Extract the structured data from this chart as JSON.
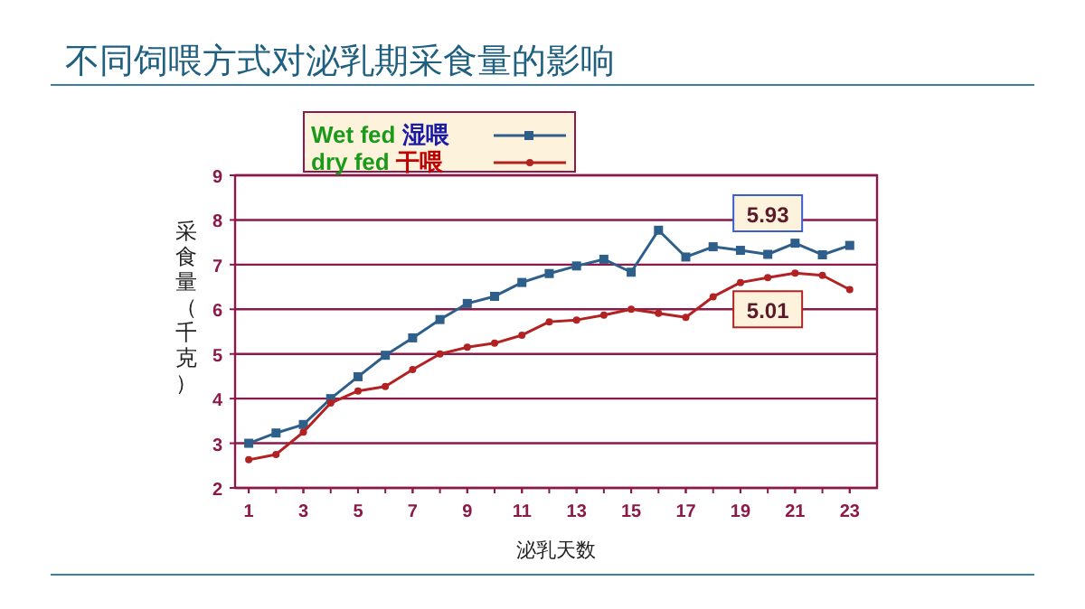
{
  "chart_data": {
    "type": "line",
    "title": "不同饲喂方式对泌乳期采食量的影响",
    "xlabel": "泌乳天数",
    "ylabel": "采食量（千克）",
    "x": [
      1,
      2,
      3,
      4,
      5,
      6,
      7,
      8,
      9,
      10,
      11,
      12,
      13,
      14,
      15,
      16,
      17,
      18,
      19,
      20,
      21,
      22,
      23
    ],
    "series": [
      {
        "name": "Wet fed 湿喂",
        "color": "#2e5f8a",
        "marker": "square",
        "values": [
          3.0,
          3.23,
          3.42,
          4.0,
          4.49,
          4.97,
          5.36,
          5.77,
          6.13,
          6.29,
          6.6,
          6.8,
          6.97,
          7.12,
          6.83,
          7.77,
          7.17,
          7.4,
          7.32,
          7.23,
          7.48,
          7.22,
          7.43
        ]
      },
      {
        "name": "dry  fed 干喂",
        "color": "#b22222",
        "marker": "circle",
        "values": [
          2.63,
          2.75,
          3.25,
          3.9,
          4.17,
          4.27,
          4.65,
          5.0,
          5.15,
          5.24,
          5.42,
          5.72,
          5.76,
          5.87,
          6.0,
          5.91,
          5.82,
          6.28,
          6.6,
          6.71,
          6.81,
          6.76,
          6.44
        ]
      }
    ],
    "xlim": [
      0.5,
      24
    ],
    "xticks": [
      1,
      3,
      5,
      7,
      9,
      11,
      13,
      15,
      17,
      19,
      21,
      23
    ],
    "ylim": [
      2,
      9
    ],
    "yticks": [
      2,
      3,
      4,
      5,
      6,
      7,
      8,
      9
    ],
    "grid": "y",
    "legend": "top left",
    "line_style": "solid",
    "annotations": [
      "5.93",
      "5.01"
    ]
  }
}
